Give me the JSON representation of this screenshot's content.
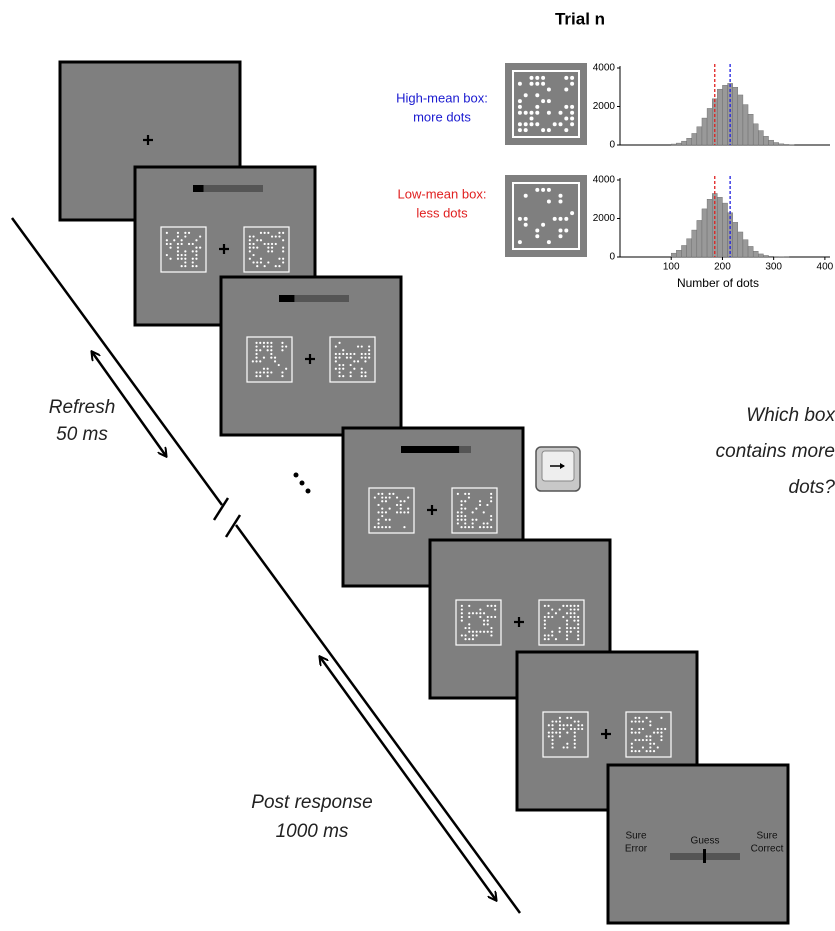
{
  "title": "Trial n",
  "stimulus_labels": {
    "high_1": "High-mean box:",
    "high_2": "more dots",
    "low_1": "Low-mean box:",
    "low_2": "less dots"
  },
  "timing": {
    "refresh_1": "Refresh",
    "refresh_2": "50 ms",
    "post_1": "Post response",
    "post_2": "1000 ms"
  },
  "question": [
    "Which box",
    "contains more",
    "dots?"
  ],
  "rating": {
    "left_1": "Sure",
    "left_2": "Error",
    "middle": "Guess",
    "right_1": "Sure",
    "right_2": "Correct"
  },
  "histograms": [
    {
      "type": "histogram",
      "bins": [
        100,
        110,
        120,
        130,
        140,
        150,
        160,
        170,
        180,
        190,
        200,
        210,
        220,
        230,
        240,
        250,
        260,
        270,
        280,
        290,
        300,
        310,
        320,
        330,
        340
      ],
      "counts": [
        50,
        100,
        200,
        350,
        600,
        950,
        1400,
        1900,
        2400,
        2900,
        3100,
        3200,
        3000,
        2600,
        2100,
        1600,
        1100,
        750,
        450,
        250,
        130,
        60,
        30,
        10
      ],
      "color": "#999999",
      "xlim": [
        0,
        410
      ],
      "ylim": [
        0,
        4000
      ],
      "yticks": [
        0,
        2000,
        4000
      ],
      "lines": [
        {
          "value": 185,
          "color": "#e02020"
        },
        {
          "value": 215,
          "color": "#2020e0"
        }
      ]
    },
    {
      "type": "histogram",
      "bins": [
        100,
        110,
        120,
        130,
        140,
        150,
        160,
        170,
        180,
        190,
        200,
        210,
        220,
        230,
        240,
        250,
        260,
        270,
        280,
        290,
        300,
        310,
        320,
        330,
        340
      ],
      "counts": [
        200,
        350,
        600,
        950,
        1400,
        1900,
        2500,
        3000,
        3300,
        3100,
        2800,
        2300,
        1800,
        1300,
        900,
        550,
        300,
        160,
        80,
        40,
        20,
        10,
        5,
        0
      ],
      "color": "#999999",
      "xlim": [
        0,
        410
      ],
      "ylim": [
        0,
        4000
      ],
      "yticks": [
        0,
        2000,
        4000
      ],
      "xticks": [
        100,
        200,
        300,
        400
      ],
      "xlabel": "Number of dots",
      "lines": [
        {
          "value": 185,
          "color": "#e02020"
        },
        {
          "value": 215,
          "color": "#2020e0"
        }
      ]
    }
  ]
}
